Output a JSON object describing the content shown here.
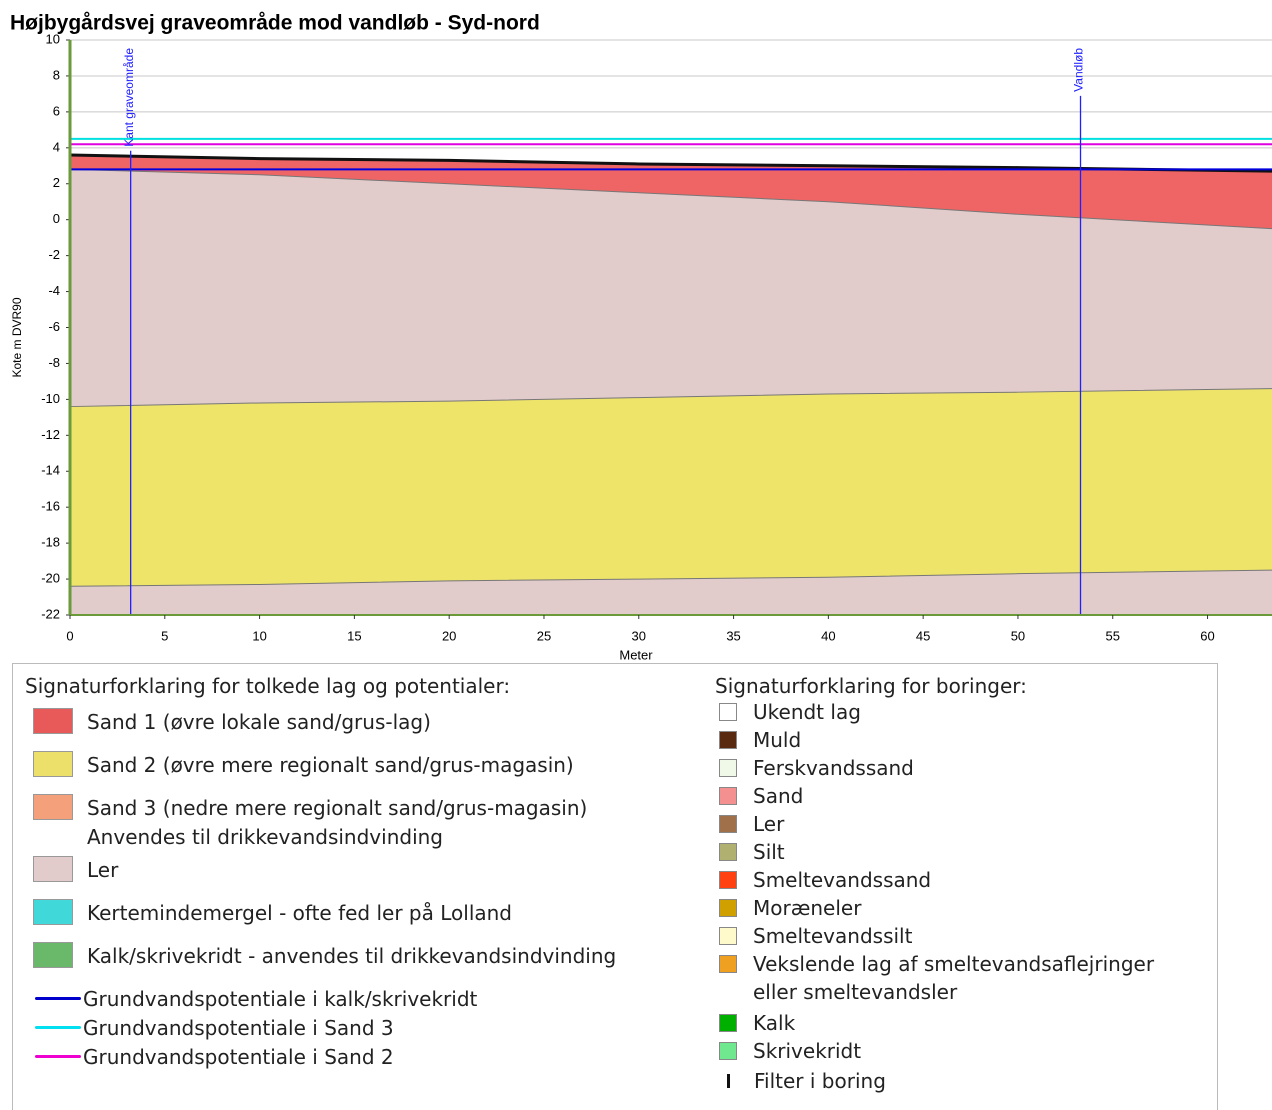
{
  "chart_data": {
    "type": "profile",
    "title": "Højbygårdsvej graveområde mod vandløb - Syd-nord",
    "xlabel": "Meter",
    "ylabel": "Kote m DVR90",
    "xlim": [
      0,
      63.4
    ],
    "ylim": [
      -22,
      10
    ],
    "xticks": [
      0,
      5,
      10,
      15,
      20,
      25,
      30,
      35,
      40,
      45,
      50,
      55,
      60
    ],
    "yticks": [
      -22,
      -20,
      -18,
      -16,
      -14,
      -12,
      -10,
      -8,
      -6,
      -4,
      -2,
      0,
      2,
      4,
      6,
      8,
      10
    ],
    "grid": true,
    "x": [
      0,
      10,
      20,
      30,
      40,
      50,
      63.4
    ],
    "layers": [
      {
        "color": "#ef6565",
        "top": [
          3.6,
          3.4,
          3.3,
          3.1,
          3.0,
          2.9,
          2.7
        ]
      },
      {
        "color": "#e2cbcb",
        "top": [
          2.8,
          2.5,
          2.0,
          1.5,
          1.0,
          0.3,
          -0.5
        ]
      },
      {
        "color": "#efe46a",
        "top": [
          -10.4,
          -10.2,
          -10.1,
          -9.9,
          -9.7,
          -9.6,
          -9.4
        ]
      },
      {
        "color": "#e2cbcb",
        "top": [
          -20.4,
          -20.3,
          -20.1,
          -20.0,
          -19.9,
          -19.7,
          -19.5
        ]
      }
    ],
    "levels": [
      {
        "color": "#00e0e0",
        "value": 4.5
      },
      {
        "color": "#e000e0",
        "value": 4.2
      },
      {
        "color": "#0000dd",
        "value": 2.8
      }
    ],
    "markers": [
      {
        "label": "Kant graveområde",
        "x": 3.2
      },
      {
        "label": "Vandløb",
        "x": 53.3
      }
    ]
  },
  "legend_left": {
    "title": "Signaturforklaring for tolkede lag og potentialer:",
    "layers": [
      {
        "color": "#e85a5a",
        "lines": [
          "Sand 1 (øvre lokale sand/grus-lag)"
        ]
      },
      {
        "color": "#ece06a",
        "lines": [
          "Sand 2 (øvre mere regionalt sand/grus-magasin)"
        ]
      },
      {
        "color": "#f4a07a",
        "lines": [
          "Sand 3 (nedre mere regionalt sand/grus-magasin)",
          "Anvendes til drikkevandsindvinding"
        ]
      },
      {
        "color": "#e2cbcb",
        "lines": [
          "Ler"
        ]
      },
      {
        "color": "#40d8d8",
        "lines": [
          "Kertemindemergel - ofte fed ler på Lolland"
        ]
      },
      {
        "color": "#6ab86a",
        "lines": [
          "Kalk/skrivekridt - anvendes til drikkevandsindvinding"
        ]
      }
    ],
    "potentials": [
      {
        "color": "#0000cc",
        "label": "Grundvandspotentiale i kalk/skrivekridt"
      },
      {
        "color": "#00e0f0",
        "label": "Grundvandspotentiale i Sand 3"
      },
      {
        "color": "#f000d0",
        "label": "Grundvandspotentiale i Sand 2"
      }
    ]
  },
  "legend_right": {
    "title": "Signaturforklaring for boringer:",
    "items": [
      {
        "color": "#ffffff",
        "lines": [
          "Ukendt lag"
        ]
      },
      {
        "color": "#5a2a10",
        "lines": [
          "Muld"
        ]
      },
      {
        "color": "#f0f8e8",
        "lines": [
          "Ferskvandssand"
        ]
      },
      {
        "color": "#f49090",
        "lines": [
          "Sand"
        ]
      },
      {
        "color": "#a0704a",
        "lines": [
          "Ler"
        ]
      },
      {
        "color": "#b0b070",
        "lines": [
          "Silt"
        ]
      },
      {
        "color": "#ff4010",
        "lines": [
          "Smeltevandssand"
        ]
      },
      {
        "color": "#d0a000",
        "lines": [
          "Moræneler"
        ]
      },
      {
        "color": "#fffacc",
        "lines": [
          "Smeltevandssilt"
        ]
      },
      {
        "color": "#f0a020",
        "lines": [
          "Vekslende lag af smeltevandsaflejringer",
          "eller smeltevandsler"
        ]
      },
      {
        "color": "#00b000",
        "lines": [
          "Kalk"
        ]
      },
      {
        "color": "#70e890",
        "lines": [
          "Skrivekridt"
        ]
      }
    ],
    "filter": "Filter i boring"
  }
}
